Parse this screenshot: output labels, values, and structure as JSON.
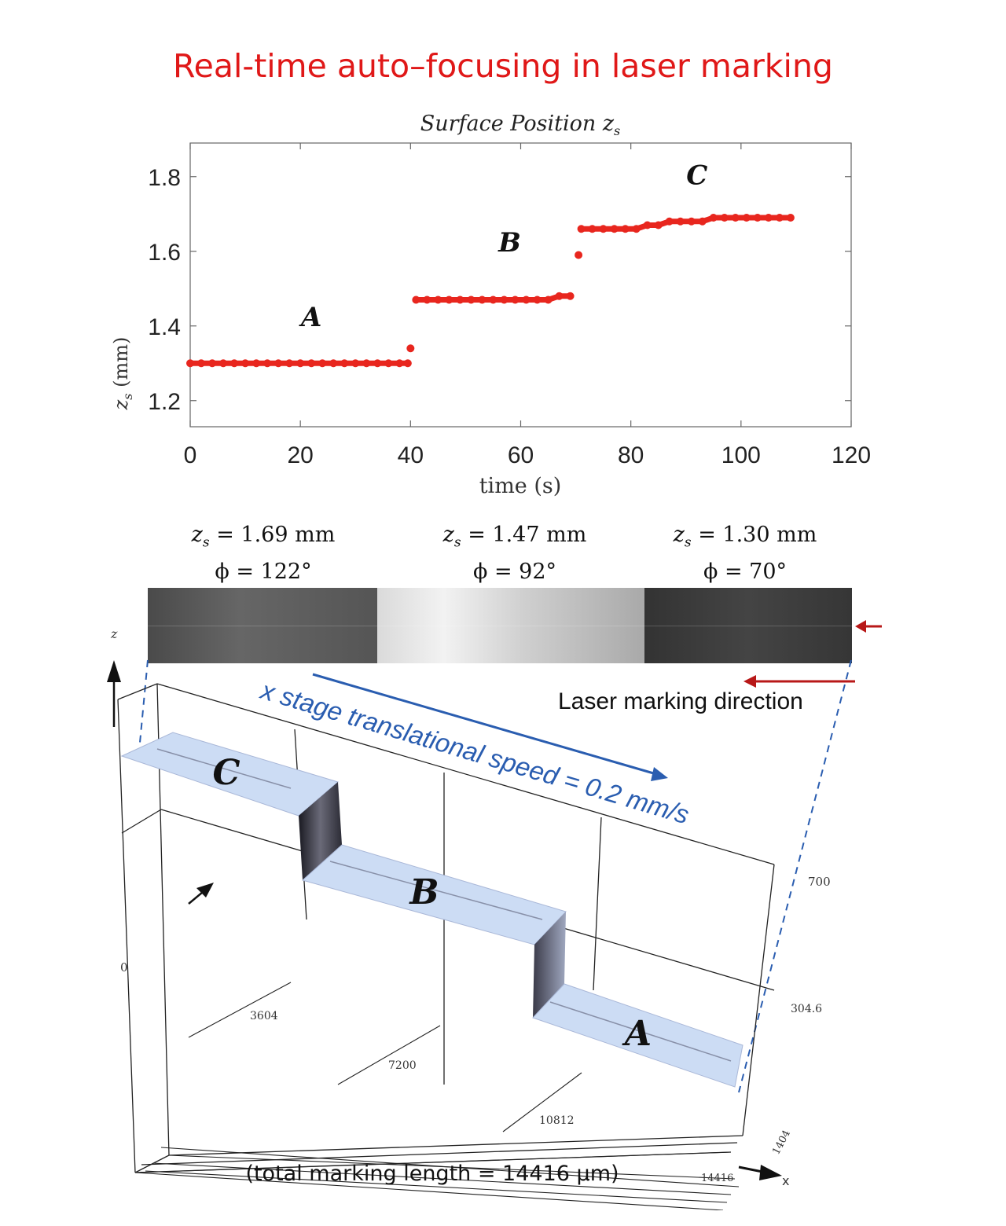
{
  "title": "Real-time auto–focusing in laser marking",
  "chart_data": {
    "type": "scatter",
    "title": "Surface Position z_s",
    "xlabel": "time (s)",
    "ylabel": "z_s (mm)",
    "xlim": [
      0,
      120
    ],
    "ylim": [
      1.13,
      1.89
    ],
    "xticks": [
      "0",
      "20",
      "40",
      "60",
      "80",
      "100",
      "120"
    ],
    "yticks": [
      "1.2",
      "1.4",
      "1.6",
      "1.8"
    ],
    "grid": false,
    "series": [
      {
        "color": "#e8261e",
        "points": [
          [
            0,
            1.3
          ],
          [
            2,
            1.3
          ],
          [
            4,
            1.3
          ],
          [
            6,
            1.3
          ],
          [
            8,
            1.3
          ],
          [
            10,
            1.3
          ],
          [
            12,
            1.3
          ],
          [
            14,
            1.3
          ],
          [
            16,
            1.3
          ],
          [
            18,
            1.3
          ],
          [
            20,
            1.3
          ],
          [
            22,
            1.3
          ],
          [
            24,
            1.3
          ],
          [
            26,
            1.3
          ],
          [
            28,
            1.3
          ],
          [
            30,
            1.3
          ],
          [
            32,
            1.3
          ],
          [
            34,
            1.3
          ],
          [
            36,
            1.3
          ],
          [
            38,
            1.3
          ],
          [
            39.5,
            1.3
          ],
          [
            40,
            1.34
          ],
          [
            41,
            1.47
          ],
          [
            43,
            1.47
          ],
          [
            45,
            1.47
          ],
          [
            47,
            1.47
          ],
          [
            49,
            1.47
          ],
          [
            51,
            1.47
          ],
          [
            53,
            1.47
          ],
          [
            55,
            1.47
          ],
          [
            57,
            1.47
          ],
          [
            59,
            1.47
          ],
          [
            61,
            1.47
          ],
          [
            63,
            1.47
          ],
          [
            65,
            1.47
          ],
          [
            67,
            1.48
          ],
          [
            69,
            1.48
          ],
          [
            70.5,
            1.59
          ],
          [
            71,
            1.66
          ],
          [
            73,
            1.66
          ],
          [
            75,
            1.66
          ],
          [
            77,
            1.66
          ],
          [
            79,
            1.66
          ],
          [
            81,
            1.66
          ],
          [
            83,
            1.67
          ],
          [
            85,
            1.67
          ],
          [
            87,
            1.68
          ],
          [
            89,
            1.68
          ],
          [
            91,
            1.68
          ],
          [
            93,
            1.68
          ],
          [
            95,
            1.69
          ],
          [
            97,
            1.69
          ],
          [
            99,
            1.69
          ],
          [
            101,
            1.69
          ],
          [
            103,
            1.69
          ],
          [
            105,
            1.69
          ],
          [
            107,
            1.69
          ],
          [
            109,
            1.69
          ]
        ]
      }
    ],
    "annotations": [
      {
        "text": "A",
        "x": 22,
        "y": 1.4
      },
      {
        "text": "B",
        "x": 58,
        "y": 1.6
      },
      {
        "text": "C",
        "x": 92,
        "y": 1.78
      }
    ]
  },
  "conditions": [
    {
      "z": "z_s = 1.69 mm",
      "phi": "ϕ = 122°"
    },
    {
      "z": "z_s = 1.47 mm",
      "phi": "ϕ = 92°"
    },
    {
      "z": "z_s = 1.30 mm",
      "phi": "ϕ = 70°"
    }
  ],
  "strip_colors": [
    "#575757",
    "#e2e2e2",
    "#3c3c3c"
  ],
  "surface_plot": {
    "speed_label": "x stage translational speed = 0.2 mm/s",
    "laser_direction_label": "Laser marking direction",
    "total_length_label": "(total marking length = 14416 μm)",
    "step_labels": [
      "C",
      "B",
      "A"
    ],
    "axis_labels": {
      "z": "z",
      "x": "x"
    },
    "x_tick_labels": [
      "0",
      "3604",
      "7200",
      "10812",
      "14416"
    ],
    "depth_tick_labels": [
      "700",
      "304.6",
      "1404"
    ],
    "surface_color": "#ccdcf4",
    "arrow_color": "#b81818",
    "speed_color": "#2a5db0"
  }
}
